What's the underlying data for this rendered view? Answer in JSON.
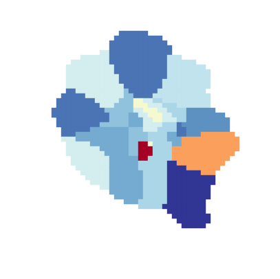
{
  "chart_data": {
    "type": "heatmap",
    "tick_labels": false,
    "zlim": [
      0,
      1
    ],
    "cell_runs": [
      [
        [
          null,
          14
        ],
        [
          0.1,
          6
        ],
        [
          null,
          20
        ]
      ],
      [
        [
          null,
          13
        ],
        [
          0.1,
          10
        ],
        [
          null,
          17
        ]
      ],
      [
        [
          null,
          12
        ],
        [
          0.1,
          12
        ],
        [
          null,
          16
        ]
      ],
      [
        [
          null,
          12
        ],
        [
          0.1,
          13
        ],
        [
          null,
          15
        ]
      ],
      [
        [
          null,
          10
        ],
        [
          0.38,
          2
        ],
        [
          0.1,
          13
        ],
        [
          null,
          15
        ]
      ],
      [
        [
          null,
          6
        ],
        [
          0.38,
          6
        ],
        [
          0.1,
          12
        ],
        [
          0.34,
          3
        ],
        [
          null,
          13
        ]
      ],
      [
        [
          null,
          4
        ],
        [
          0.38,
          8
        ],
        [
          0.1,
          12
        ],
        [
          0.34,
          6
        ],
        [
          null,
          10
        ]
      ],
      [
        [
          null,
          3
        ],
        [
          0.38,
          10
        ],
        [
          0.1,
          11
        ],
        [
          0.34,
          8
        ],
        [
          null,
          8
        ]
      ],
      [
        [
          null,
          3
        ],
        [
          0.38,
          10
        ],
        [
          0.1,
          11
        ],
        [
          0.34,
          9
        ],
        [
          null,
          7
        ]
      ],
      [
        [
          null,
          3
        ],
        [
          0.38,
          11
        ],
        [
          0.1,
          10
        ],
        [
          0.34,
          9
        ],
        [
          null,
          7
        ]
      ],
      [
        [
          null,
          3
        ],
        [
          0.38,
          11
        ],
        [
          0.1,
          9
        ],
        [
          0.34,
          10
        ],
        [
          null,
          7
        ]
      ],
      [
        [
          null,
          3
        ],
        [
          0.38,
          12
        ],
        [
          0.1,
          8
        ],
        [
          0.34,
          10
        ],
        [
          null,
          7
        ]
      ],
      [
        [
          null,
          3
        ],
        [
          0.1,
          2
        ],
        [
          0.38,
          10
        ],
        [
          0.25,
          1
        ],
        [
          0.1,
          6
        ],
        [
          0.34,
          10
        ],
        [
          null,
          8
        ]
      ],
      [
        [
          null,
          2
        ],
        [
          0.1,
          5
        ],
        [
          0.38,
          8
        ],
        [
          0.25,
          2
        ],
        [
          0.1,
          4
        ],
        [
          0.34,
          12
        ],
        [
          null,
          7
        ]
      ],
      [
        [
          null,
          1
        ],
        [
          0.1,
          8
        ],
        [
          0.38,
          5
        ],
        [
          0.25,
          3
        ],
        [
          0.47,
          2
        ],
        [
          0.38,
          2
        ],
        [
          0.3,
          2
        ],
        [
          0.34,
          10
        ],
        [
          null,
          7
        ]
      ],
      [
        [
          null,
          1
        ],
        [
          0.1,
          9
        ],
        [
          0.38,
          3
        ],
        [
          0.25,
          4
        ],
        [
          0.47,
          3
        ],
        [
          0.38,
          3
        ],
        [
          0.3,
          3
        ],
        [
          0.34,
          7
        ],
        [
          null,
          7
        ]
      ],
      [
        [
          0.1,
          11
        ],
        [
          0.25,
          6
        ],
        [
          0.38,
          2
        ],
        [
          0.47,
          3
        ],
        [
          0.38,
          2
        ],
        [
          0.3,
          4
        ],
        [
          0.15,
          6
        ],
        [
          null,
          6
        ]
      ],
      [
        [
          0.1,
          12
        ],
        [
          0.25,
          4
        ],
        [
          0.2,
          2
        ],
        [
          0.38,
          2
        ],
        [
          0.47,
          3
        ],
        [
          0.38,
          2
        ],
        [
          0.3,
          3
        ],
        [
          0.15,
          8
        ],
        [
          null,
          4
        ]
      ],
      [
        [
          null,
          1
        ],
        [
          0.1,
          11
        ],
        [
          0.25,
          4
        ],
        [
          0.2,
          3
        ],
        [
          0.38,
          2
        ],
        [
          0.47,
          2
        ],
        [
          0.38,
          3
        ],
        [
          0.3,
          2
        ],
        [
          0.15,
          9
        ],
        [
          null,
          3
        ]
      ],
      [
        [
          null,
          1
        ],
        [
          0.1,
          9
        ],
        [
          0.25,
          6
        ],
        [
          0.2,
          3
        ],
        [
          0.38,
          4
        ],
        [
          0.3,
          3
        ],
        [
          0.1,
          1
        ],
        [
          0.15,
          10
        ],
        [
          null,
          3
        ]
      ],
      [
        [
          null,
          2
        ],
        [
          0.1,
          6
        ],
        [
          0.2,
          8
        ],
        [
          0.25,
          3
        ],
        [
          0.38,
          3
        ],
        [
          0.3,
          4
        ],
        [
          0.1,
          2
        ],
        [
          0.15,
          9
        ],
        [
          null,
          3
        ]
      ],
      [
        [
          null,
          2
        ],
        [
          0.1,
          3
        ],
        [
          0.2,
          11
        ],
        [
          0.25,
          4
        ],
        [
          0.3,
          4
        ],
        [
          0.2,
          2
        ],
        [
          0.1,
          2
        ],
        [
          0.15,
          3
        ],
        [
          0.72,
          7
        ],
        [
          null,
          2
        ]
      ],
      [
        [
          null,
          2
        ],
        [
          0.38,
          3
        ],
        [
          0.2,
          11
        ],
        [
          0.25,
          4
        ],
        [
          0.3,
          4
        ],
        [
          0.2,
          3
        ],
        [
          0.72,
          12
        ],
        [
          null,
          1
        ]
      ],
      [
        [
          null,
          3
        ],
        [
          0.38,
          5
        ],
        [
          0.2,
          8
        ],
        [
          0.25,
          2
        ],
        [
          1,
          2
        ],
        [
          0.47,
          1
        ],
        [
          0.3,
          4
        ],
        [
          0.2,
          2
        ],
        [
          0.72,
          12
        ],
        [
          null,
          1
        ]
      ],
      [
        [
          null,
          3
        ],
        [
          0.38,
          7
        ],
        [
          0.2,
          6
        ],
        [
          0.25,
          2
        ],
        [
          1,
          3
        ],
        [
          0.3,
          4
        ],
        [
          0.72,
          14
        ],
        [
          null,
          1
        ]
      ],
      [
        [
          null,
          3
        ],
        [
          0.38,
          8
        ],
        [
          0.2,
          5
        ],
        [
          0.25,
          2
        ],
        [
          1,
          3
        ],
        [
          0.3,
          4
        ],
        [
          0.72,
          13
        ],
        [
          null,
          2
        ]
      ],
      [
        [
          null,
          4
        ],
        [
          0.38,
          8
        ],
        [
          0.2,
          6
        ],
        [
          1,
          2
        ],
        [
          0.3,
          5
        ],
        [
          0.72,
          12
        ],
        [
          null,
          3
        ]
      ],
      [
        [
          null,
          4
        ],
        [
          0.38,
          8
        ],
        [
          0.2,
          6
        ],
        [
          0.3,
          6
        ],
        [
          0,
          2
        ],
        [
          0.72,
          10
        ],
        [
          null,
          4
        ]
      ],
      [
        [
          null,
          5
        ],
        [
          0.38,
          7
        ],
        [
          0.2,
          6
        ],
        [
          0.3,
          6
        ],
        [
          0,
          4
        ],
        [
          0.72,
          7
        ],
        [
          null,
          5
        ]
      ],
      [
        [
          null,
          6
        ],
        [
          0.38,
          6
        ],
        [
          0.2,
          7
        ],
        [
          0.3,
          5
        ],
        [
          0,
          7
        ],
        [
          0.72,
          3
        ],
        [
          null,
          6
        ]
      ],
      [
        [
          null,
          7
        ],
        [
          0.38,
          5
        ],
        [
          0.2,
          7
        ],
        [
          0.3,
          5
        ],
        [
          0,
          10
        ],
        [
          null,
          6
        ]
      ],
      [
        [
          null,
          8
        ],
        [
          0.38,
          4
        ],
        [
          0.2,
          7
        ],
        [
          0.3,
          5
        ],
        [
          0,
          10
        ],
        [
          null,
          6
        ]
      ],
      [
        [
          null,
          10
        ],
        [
          0.38,
          2
        ],
        [
          0.2,
          7
        ],
        [
          0.3,
          5
        ],
        [
          0,
          9
        ],
        [
          null,
          7
        ]
      ],
      [
        [
          null,
          12
        ],
        [
          0.2,
          7
        ],
        [
          0.3,
          5
        ],
        [
          0,
          9
        ],
        [
          null,
          7
        ]
      ],
      [
        [
          null,
          13
        ],
        [
          0.2,
          6
        ],
        [
          0.3,
          5
        ],
        [
          0,
          9
        ],
        [
          null,
          7
        ]
      ],
      [
        [
          null,
          15
        ],
        [
          0.2,
          3
        ],
        [
          0.3,
          6
        ],
        [
          0,
          8
        ],
        [
          null,
          8
        ]
      ],
      [
        [
          null,
          18
        ],
        [
          0.3,
          5
        ],
        [
          0,
          9
        ],
        [
          null,
          9
        ]
      ],
      [
        [
          null,
          24
        ],
        [
          0,
          8
        ],
        [
          null,
          8
        ]
      ],
      [
        [
          null,
          25
        ],
        [
          0,
          8
        ],
        [
          null,
          7
        ]
      ],
      [
        [
          null,
          26
        ],
        [
          0,
          7
        ],
        [
          null,
          7
        ]
      ],
      [
        [
          null,
          27
        ],
        [
          0,
          5
        ],
        [
          null,
          8
        ]
      ]
    ]
  }
}
